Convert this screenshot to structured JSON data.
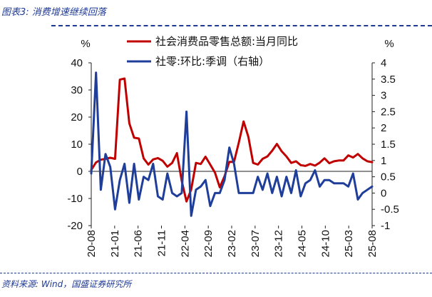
{
  "header": {
    "title": "图表3:  消费增速继续回落"
  },
  "footer": {
    "source": "资料来源:  Wind，国盛证券研究所"
  },
  "chart_data": {
    "type": "line",
    "title": "",
    "left_unit": "%",
    "right_unit": "%",
    "ylim_left": [
      -20,
      40
    ],
    "ylim_right": [
      -1,
      4
    ],
    "left_ticks": [
      "40",
      "30",
      "20",
      "10",
      "0",
      "-10",
      "-20"
    ],
    "right_ticks": [
      "4",
      "3.5",
      "3",
      "2.5",
      "2",
      "1.5",
      "1",
      "0.5",
      "0",
      "-0.5",
      "-1"
    ],
    "x_tick_labels": [
      "20-08",
      "21-01",
      "21-06",
      "21-11",
      "22-04",
      "22-09",
      "23-02",
      "23-07",
      "23-12",
      "24-05",
      "24-10",
      "25-03",
      "25-08"
    ],
    "series": [
      {
        "name": "社会消费品零售总额:当月同比",
        "axis": "left",
        "color": "#c00000",
        "values": [
          0.5,
          3.3,
          4.3,
          4.6,
          5.0,
          4.6,
          33.8,
          34.2,
          17.7,
          12.4,
          12.1,
          4.8,
          2.5,
          4.4,
          4.9,
          3.9,
          1.7,
          3.1,
          6.7,
          -3.5,
          -11.1,
          -6.7,
          3.1,
          2.7,
          5.4,
          2.5,
          -0.5,
          -5.9,
          -1.8,
          3.5,
          3.5,
          10.6,
          18.4,
          12.7,
          3.1,
          2.5,
          4.6,
          5.5,
          7.6,
          10.1,
          7.4,
          5.5,
          3.1,
          3.7,
          2.3,
          2.0,
          2.7,
          2.1,
          3.2,
          4.8,
          3.0,
          3.7,
          4.0,
          4.0,
          5.9,
          5.1,
          6.4,
          4.8,
          3.7,
          3.4
        ]
      },
      {
        "name": "社零:环比:季调（右轴）",
        "axis": "right",
        "color": "#1f3e9a",
        "values": [
          0.6,
          3.7,
          0.1,
          1.2,
          0.8,
          -0.5,
          0.4,
          0.9,
          -0.3,
          0.9,
          -0.2,
          0.5,
          0.4,
          0.9,
          -0.1,
          -0.2,
          0.6,
          0.0,
          -0.1,
          0.0,
          2.5,
          -0.7,
          0.1,
          0.2,
          0.4,
          -0.4,
          0.0,
          0.0,
          0.4,
          1.4,
          0.9,
          0.0,
          0.0,
          0.0,
          0.0,
          0.5,
          0.1,
          0.6,
          0.0,
          0.5,
          -0.1,
          0.5,
          0.0,
          0.7,
          -0.1,
          0.3,
          0.4,
          0.7,
          0.2,
          0.4,
          0.4,
          0.3,
          0.3,
          0.3,
          0.2,
          0.6,
          -0.2,
          0.0,
          0.1,
          0.2
        ]
      }
    ]
  }
}
